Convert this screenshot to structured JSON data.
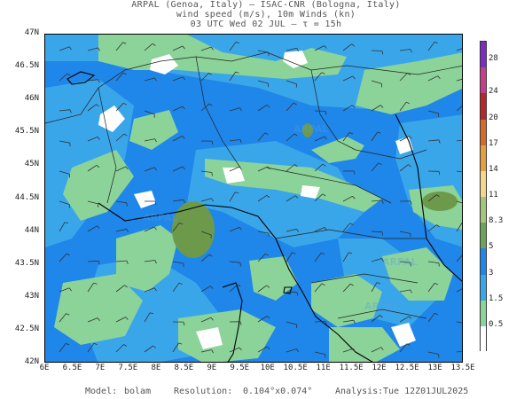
{
  "header": {
    "line1": "ARPAL (Genoa, Italy)  —  ISAC-CNR (Bologna, Italy)",
    "line2": "wind speed (m/s), 10m Winds (kn)",
    "line3": "03 UTC Wed 02 JUL   —   τ = 15h"
  },
  "map": {
    "lat_labels": [
      "47N",
      "46.5N",
      "46N",
      "45.5N",
      "45N",
      "44.5N",
      "44N",
      "43.5N",
      "43N",
      "42.5N",
      "42N"
    ],
    "lon_labels": [
      "6E",
      "6.5E",
      "7E",
      "7.5E",
      "8E",
      "8.5E",
      "9E",
      "9.5E",
      "10E",
      "10.5E",
      "11E",
      "11.5E",
      "12E",
      "12.5E",
      "13E",
      "13.5E"
    ],
    "lat_range": [
      42,
      47
    ],
    "lon_range": [
      6,
      13.5
    ],
    "watermark": "ARPAL",
    "colors": {
      "sea_blue": "#1f86ea",
      "light_blue": "#3aa6ea",
      "green": "#8bd398",
      "dark_green": "#6c9a4a",
      "white": "#ffffff",
      "coast": "#000000",
      "border": "#555555"
    }
  },
  "colorbar": {
    "labels": [
      "28",
      "24",
      "20",
      "17",
      "14",
      "11",
      "8.3",
      "5",
      "3",
      "1.5",
      "0.5"
    ],
    "colors": [
      "#7b2fbe",
      "#c43f8a",
      "#b4292a",
      "#d26b2c",
      "#e4a040",
      "#f1d88a",
      "#a4c57a",
      "#6ca35a",
      "#1f86ea",
      "#3aa6ea",
      "#8bd398",
      "#ffffff"
    ]
  },
  "footer": {
    "model_label": "Model:",
    "model_value": "bolam",
    "resolution_label": "Resolution:",
    "resolution_value": "0.104°x0.074°",
    "analysis_label": "Analysis:",
    "analysis_value": "Tue 12Z01JUL2025"
  }
}
